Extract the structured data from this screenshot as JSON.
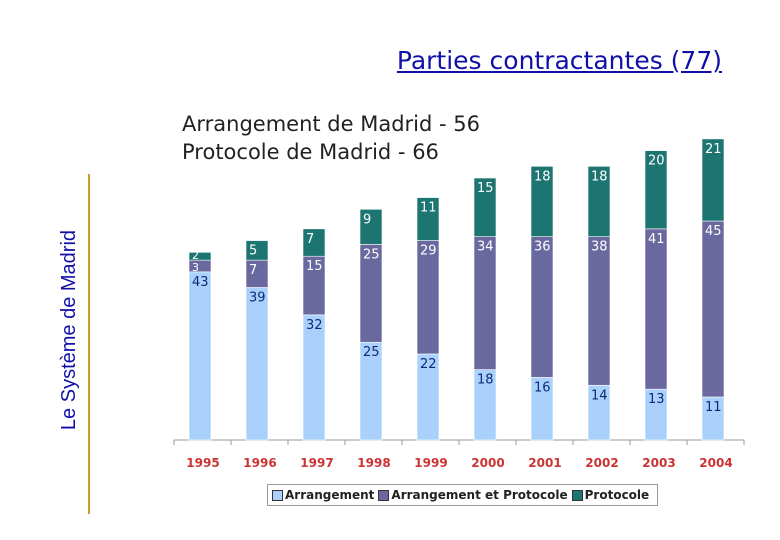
{
  "header": {
    "title": "Parties contractantes (77)",
    "subtitle_1": "Arrangement de Madrid - 56",
    "subtitle_2": "Protocole de Madrid - 66",
    "side_label": "Le Système de Madrid"
  },
  "colors": {
    "arrangement": "#a9d1fb",
    "arrangement_protocole": "#6a699f",
    "protocole": "#1c7571",
    "year_label": "#cc3333",
    "title": "#1010a8"
  },
  "chart_data": {
    "type": "bar",
    "stacked": true,
    "categories": [
      "1995",
      "1996",
      "1997",
      "1998",
      "1999",
      "2000",
      "2001",
      "2002",
      "2003",
      "2004"
    ],
    "series": [
      {
        "name": "Arrangement",
        "values": [
          43,
          39,
          32,
          25,
          22,
          18,
          16,
          14,
          13,
          11
        ]
      },
      {
        "name": "Arrangement et Protocole",
        "values": [
          3,
          7,
          15,
          25,
          29,
          34,
          36,
          38,
          41,
          45
        ]
      },
      {
        "name": "Protocole",
        "values": [
          2,
          5,
          7,
          9,
          11,
          15,
          18,
          18,
          20,
          21
        ]
      }
    ],
    "ylim": [
      0,
      78
    ],
    "legend_position": "bottom",
    "grid": false
  }
}
